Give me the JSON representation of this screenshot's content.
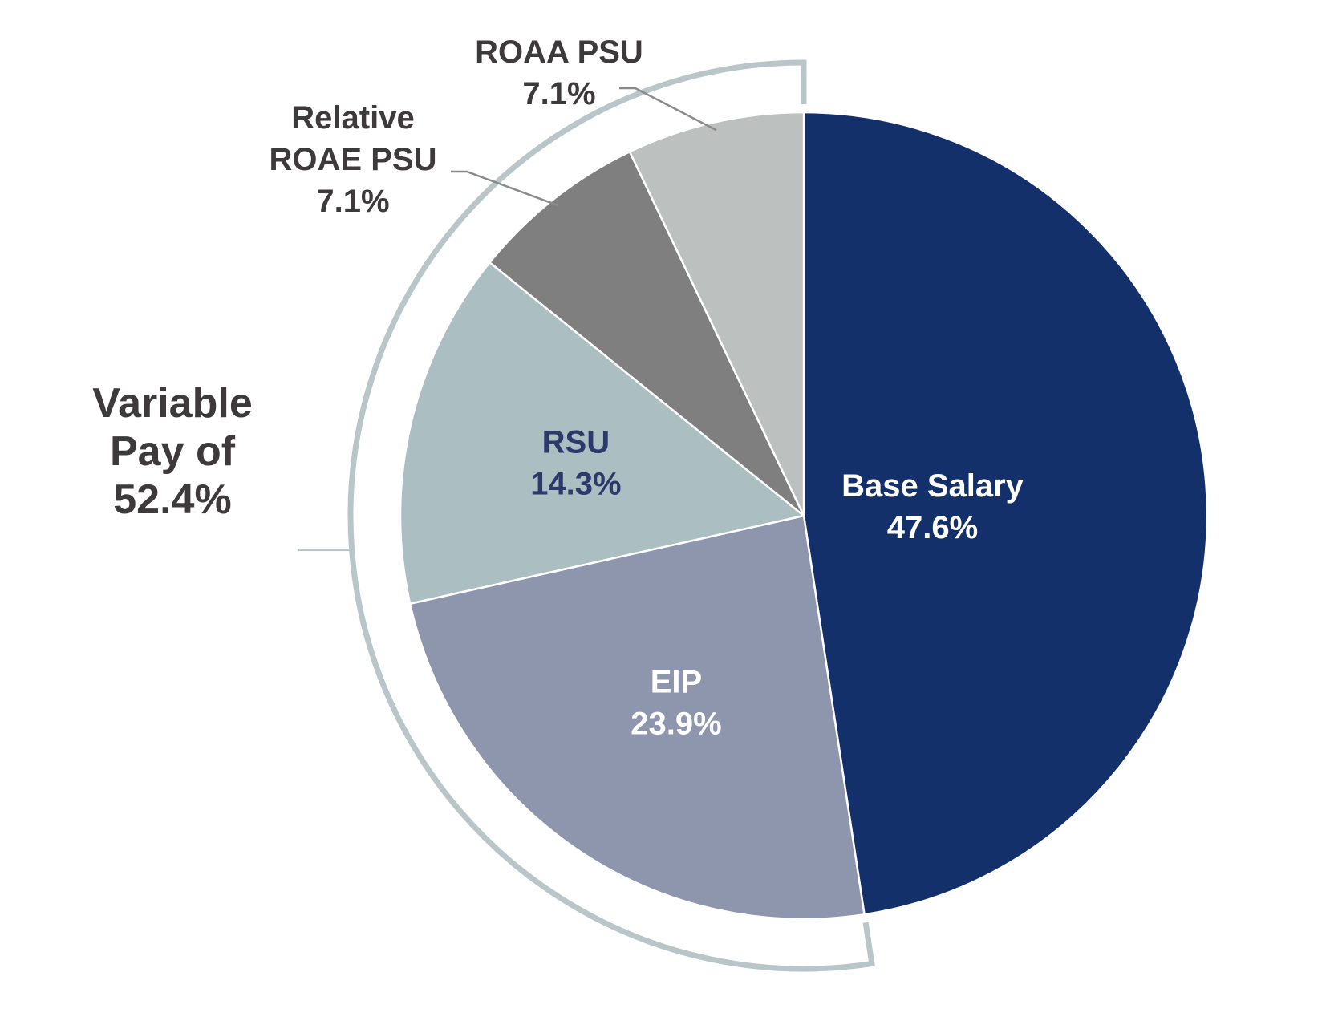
{
  "chart_data": {
    "type": "pie",
    "start_angle_deg": 0,
    "direction": "clockwise",
    "slices": [
      {
        "label": "Base Salary",
        "pct_label": "47.6%",
        "value": 47.6,
        "color": "#14306b",
        "label_color": "#ffffff"
      },
      {
        "label": "EIP",
        "pct_label": "23.9%",
        "value": 23.9,
        "color": "#8e96ad",
        "label_color": "#ffffff"
      },
      {
        "label": "RSU",
        "pct_label": "14.3%",
        "value": 14.3,
        "color": "#abbfc3",
        "label_color": "#2b3a6b"
      },
      {
        "label": "Relative ROAE PSU",
        "label_lines": [
          "Relative",
          "ROAE PSU"
        ],
        "pct_label": "7.1%",
        "value": 7.1,
        "color": "#7f7f7f",
        "label_color": "#3e3a3b"
      },
      {
        "label": "ROAA PSU",
        "pct_label": "7.1%",
        "value": 7.1,
        "color": "#bcc0bf",
        "label_color": "#3e3a3b"
      }
    ],
    "bracket": {
      "lines": [
        "Variable",
        "Pay of",
        "52.4%"
      ],
      "value": 52.4,
      "color": "#b8c6ca"
    },
    "slice_border_color": "#ffffff"
  }
}
